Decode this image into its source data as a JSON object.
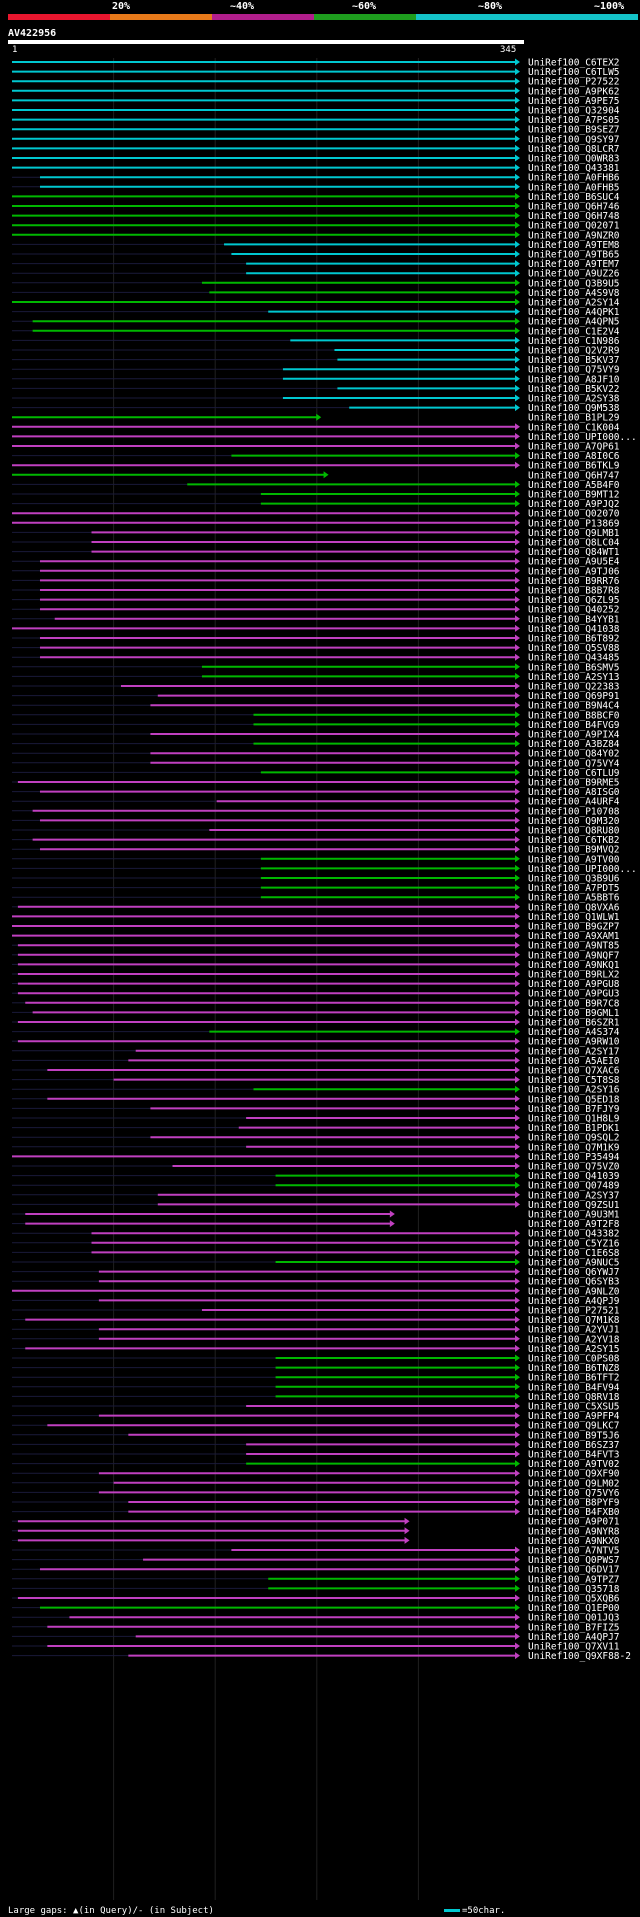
{
  "query": {
    "name": "AV422956",
    "start": "1",
    "end": "345"
  },
  "legend": {
    "ticks": [
      "20%",
      "~40%",
      "~60%",
      "~80%",
      "~100%"
    ],
    "colors": [
      "#e8162e",
      "#e87a1a",
      "#b21e8c",
      "#1e9e1e",
      "#14c3c8"
    ]
  },
  "footer": {
    "gaps_text": "Large gaps: ▲(in Query)/- (in Subject)",
    "scale_text": "=50char."
  },
  "colors": {
    "cyan": "#00c8d0",
    "green": "#00b800",
    "magenta": "#c040c0",
    "background": "#000000"
  },
  "hits": [
    {
      "id": "UniRef100_C6TEX2",
      "c": "cyan",
      "s": 1,
      "e": 345
    },
    {
      "id": "UniRef100_C6TLW5",
      "c": "cyan",
      "s": 1,
      "e": 345
    },
    {
      "id": "UniRef100_P27522",
      "c": "cyan",
      "s": 1,
      "e": 345
    },
    {
      "id": "UniRef100_A9PK62",
      "c": "cyan",
      "s": 1,
      "e": 345
    },
    {
      "id": "UniRef100_A9PE75",
      "c": "cyan",
      "s": 1,
      "e": 345
    },
    {
      "id": "UniRef100_Q32904",
      "c": "cyan",
      "s": 1,
      "e": 345
    },
    {
      "id": "UniRef100_A7PS05",
      "c": "cyan",
      "s": 1,
      "e": 345
    },
    {
      "id": "UniRef100_B9SEZ7",
      "c": "cyan",
      "s": 1,
      "e": 345
    },
    {
      "id": "UniRef100_Q9SY97",
      "c": "cyan",
      "s": 1,
      "e": 345
    },
    {
      "id": "UniRef100_Q8LCR7",
      "c": "cyan",
      "s": 1,
      "e": 345
    },
    {
      "id": "UniRef100_Q0WR83",
      "c": "cyan",
      "s": 1,
      "e": 345
    },
    {
      "id": "UniRef100_Q43381",
      "c": "cyan",
      "s": 1,
      "e": 345
    },
    {
      "id": "UniRef100_A0FHB6",
      "c": "cyan",
      "s": 20,
      "e": 345
    },
    {
      "id": "UniRef100_A0FHB5",
      "c": "cyan",
      "s": 20,
      "e": 345
    },
    {
      "id": "UniRef100_B6SUC4",
      "c": "green",
      "s": 1,
      "e": 345
    },
    {
      "id": "UniRef100_Q6H746",
      "c": "green",
      "s": 1,
      "e": 345
    },
    {
      "id": "UniRef100_Q6H748",
      "c": "green",
      "s": 1,
      "e": 345
    },
    {
      "id": "UniRef100_Q02071",
      "c": "green",
      "s": 1,
      "e": 345
    },
    {
      "id": "UniRef100_A9NZR0",
      "c": "green",
      "s": 1,
      "e": 345
    },
    {
      "id": "UniRef100_A9TEM8",
      "c": "cyan",
      "s": 145,
      "e": 345
    },
    {
      "id": "UniRef100_A9TB65",
      "c": "cyan",
      "s": 150,
      "e": 345
    },
    {
      "id": "UniRef100_A9TEM7",
      "c": "cyan",
      "s": 160,
      "e": 345
    },
    {
      "id": "UniRef100_A9UZ26",
      "c": "cyan",
      "s": 160,
      "e": 345
    },
    {
      "id": "UniRef100_Q3B9U5",
      "c": "green",
      "s": 130,
      "e": 345
    },
    {
      "id": "UniRef100_A4S9V8",
      "c": "green",
      "s": 135,
      "e": 345
    },
    {
      "id": "UniRef100_A2SY14",
      "c": "green",
      "s": 1,
      "e": 345
    },
    {
      "id": "UniRef100_A4QPK1",
      "c": "cyan",
      "s": 175,
      "e": 345
    },
    {
      "id": "UniRef100_A4QPN5",
      "c": "green",
      "s": 15,
      "e": 345
    },
    {
      "id": "UniRef100_C1E2V4",
      "c": "green",
      "s": 15,
      "e": 345
    },
    {
      "id": "UniRef100_C1N986",
      "c": "cyan",
      "s": 190,
      "e": 345
    },
    {
      "id": "UniRef100_Q2V2R9",
      "c": "cyan",
      "s": 220,
      "e": 345
    },
    {
      "id": "UniRef100_B5KV37",
      "c": "cyan",
      "s": 222,
      "e": 345
    },
    {
      "id": "UniRef100_Q75VY9",
      "c": "cyan",
      "s": 185,
      "e": 345
    },
    {
      "id": "UniRef100_A8JF10",
      "c": "cyan",
      "s": 185,
      "e": 345
    },
    {
      "id": "UniRef100_B5KV22",
      "c": "cyan",
      "s": 222,
      "e": 345
    },
    {
      "id": "UniRef100_A2SY38",
      "c": "cyan",
      "s": 185,
      "e": 345
    },
    {
      "id": "UniRef100_Q9M538",
      "c": "cyan",
      "s": 230,
      "e": 345
    },
    {
      "id": "UniRef100_B1PL29",
      "c": "green",
      "s": 1,
      "e": 210
    },
    {
      "id": "UniRef100_C1K004",
      "c": "magenta",
      "s": 1,
      "e": 345
    },
    {
      "id": "UniRef100_UPI000...",
      "c": "magenta",
      "s": 1,
      "e": 345
    },
    {
      "id": "UniRef100_A7QP61",
      "c": "magenta",
      "s": 1,
      "e": 345
    },
    {
      "id": "UniRef100_A8I0C6",
      "c": "green",
      "s": 150,
      "e": 345
    },
    {
      "id": "UniRef100_B6TKL9",
      "c": "magenta",
      "s": 1,
      "e": 345
    },
    {
      "id": "UniRef100_Q6H747",
      "c": "green",
      "s": 1,
      "e": 215
    },
    {
      "id": "UniRef100_A5B4F0",
      "c": "green",
      "s": 120,
      "e": 345
    },
    {
      "id": "UniRef100_B9MT12",
      "c": "green",
      "s": 170,
      "e": 345
    },
    {
      "id": "UniRef100_A9PJQ2",
      "c": "green",
      "s": 170,
      "e": 345
    },
    {
      "id": "UniRef100_Q02070",
      "c": "magenta",
      "s": 1,
      "e": 345
    },
    {
      "id": "UniRef100_P13869",
      "c": "magenta",
      "s": 1,
      "e": 345
    },
    {
      "id": "UniRef100_Q9LMB1",
      "c": "magenta",
      "s": 55,
      "e": 345
    },
    {
      "id": "UniRef100_Q8LC04",
      "c": "magenta",
      "s": 55,
      "e": 345
    },
    {
      "id": "UniRef100_Q84WT1",
      "c": "magenta",
      "s": 55,
      "e": 345
    },
    {
      "id": "UniRef100_A9U5E4",
      "c": "magenta",
      "s": 20,
      "e": 345
    },
    {
      "id": "UniRef100_A9TJ06",
      "c": "magenta",
      "s": 20,
      "e": 345
    },
    {
      "id": "UniRef100_B9RR76",
      "c": "magenta",
      "s": 20,
      "e": 345
    },
    {
      "id": "UniRef100_B8B7R8",
      "c": "magenta",
      "s": 20,
      "e": 345
    },
    {
      "id": "UniRef100_Q6ZL95",
      "c": "magenta",
      "s": 20,
      "e": 345
    },
    {
      "id": "UniRef100_Q40252",
      "c": "magenta",
      "s": 20,
      "e": 345
    },
    {
      "id": "UniRef100_B4YYB1",
      "c": "magenta",
      "s": 30,
      "e": 345
    },
    {
      "id": "UniRef100_Q41038",
      "c": "magenta",
      "s": 1,
      "e": 345
    },
    {
      "id": "UniRef100_B6T892",
      "c": "magenta",
      "s": 20,
      "e": 345
    },
    {
      "id": "UniRef100_Q5SV88",
      "c": "magenta",
      "s": 20,
      "e": 345
    },
    {
      "id": "UniRef100_Q43485",
      "c": "magenta",
      "s": 20,
      "e": 345
    },
    {
      "id": "UniRef100_B6SMV5",
      "c": "green",
      "s": 130,
      "e": 345
    },
    {
      "id": "UniRef100_A2SY13",
      "c": "green",
      "s": 130,
      "e": 345
    },
    {
      "id": "UniRef100_Q22383",
      "c": "magenta",
      "s": 75,
      "e": 345
    },
    {
      "id": "UniRef100_Q69P91",
      "c": "magenta",
      "s": 100,
      "e": 345
    },
    {
      "id": "UniRef100_B9N4C4",
      "c": "magenta",
      "s": 95,
      "e": 345
    },
    {
      "id": "UniRef100_B8BCF0",
      "c": "green",
      "s": 165,
      "e": 345
    },
    {
      "id": "UniRef100_B4FVG9",
      "c": "green",
      "s": 165,
      "e": 345
    },
    {
      "id": "UniRef100_A9PIX4",
      "c": "magenta",
      "s": 95,
      "e": 345
    },
    {
      "id": "UniRef100_A3BZ84",
      "c": "green",
      "s": 165,
      "e": 345
    },
    {
      "id": "UniRef100_Q84Y02",
      "c": "magenta",
      "s": 95,
      "e": 345
    },
    {
      "id": "UniRef100_Q75VY4",
      "c": "magenta",
      "s": 95,
      "e": 345
    },
    {
      "id": "UniRef100_C6TLU9",
      "c": "green",
      "s": 170,
      "e": 345
    },
    {
      "id": "UniRef100_B9RME5",
      "c": "magenta",
      "s": 5,
      "e": 345
    },
    {
      "id": "UniRef100_A8ISG0",
      "c": "magenta",
      "s": 20,
      "e": 345
    },
    {
      "id": "UniRef100_A4URF4",
      "c": "magenta",
      "s": 140,
      "e": 345
    },
    {
      "id": "UniRef100_P10708",
      "c": "magenta",
      "s": 15,
      "e": 345
    },
    {
      "id": "UniRef100_Q9M320",
      "c": "magenta",
      "s": 20,
      "e": 345
    },
    {
      "id": "UniRef100_Q8RU80",
      "c": "magenta",
      "s": 135,
      "e": 345
    },
    {
      "id": "UniRef100_C6TKB2",
      "c": "magenta",
      "s": 15,
      "e": 345
    },
    {
      "id": "UniRef100_B9MVQ2",
      "c": "magenta",
      "s": 20,
      "e": 345
    },
    {
      "id": "UniRef100_A9TV00",
      "c": "green",
      "s": 170,
      "e": 345
    },
    {
      "id": "UniRef100_UPI000...",
      "c": "green",
      "s": 170,
      "e": 345
    },
    {
      "id": "UniRef100_Q3B9U6",
      "c": "green",
      "s": 170,
      "e": 345
    },
    {
      "id": "UniRef100_A7PDT5",
      "c": "green",
      "s": 170,
      "e": 345
    },
    {
      "id": "UniRef100_A5BBT6",
      "c": "green",
      "s": 170,
      "e": 345
    },
    {
      "id": "UniRef100_Q8VXA6",
      "c": "magenta",
      "s": 5,
      "e": 345
    },
    {
      "id": "UniRef100_Q1WLW1",
      "c": "magenta",
      "s": 1,
      "e": 345
    },
    {
      "id": "UniRef100_B9GZP7",
      "c": "magenta",
      "s": 1,
      "e": 345
    },
    {
      "id": "UniRef100_A9XAM1",
      "c": "magenta",
      "s": 1,
      "e": 345
    },
    {
      "id": "UniRef100_A9NT85",
      "c": "magenta",
      "s": 5,
      "e": 345
    },
    {
      "id": "UniRef100_A9NQF7",
      "c": "magenta",
      "s": 5,
      "e": 345
    },
    {
      "id": "UniRef100_A9NKQ1",
      "c": "magenta",
      "s": 5,
      "e": 345
    },
    {
      "id": "UniRef100_B9RLX2",
      "c": "magenta",
      "s": 5,
      "e": 345
    },
    {
      "id": "UniRef100_A9PGU8",
      "c": "magenta",
      "s": 5,
      "e": 345
    },
    {
      "id": "UniRef100_A9PGU3",
      "c": "magenta",
      "s": 5,
      "e": 345
    },
    {
      "id": "UniRef100_B9R7C8",
      "c": "magenta",
      "s": 10,
      "e": 345
    },
    {
      "id": "UniRef100_B9GML1",
      "c": "magenta",
      "s": 15,
      "e": 345
    },
    {
      "id": "UniRef100_B6SZR1",
      "c": "magenta",
      "s": 5,
      "e": 345
    },
    {
      "id": "UniRef100_A4S374",
      "c": "green",
      "s": 135,
      "e": 345
    },
    {
      "id": "UniRef100_A9RW10",
      "c": "magenta",
      "s": 5,
      "e": 345
    },
    {
      "id": "UniRef100_A2SY17",
      "c": "magenta",
      "s": 85,
      "e": 345
    },
    {
      "id": "UniRef100_A5AEI0",
      "c": "magenta",
      "s": 80,
      "e": 345
    },
    {
      "id": "UniRef100_Q7XAC6",
      "c": "magenta",
      "s": 25,
      "e": 345
    },
    {
      "id": "UniRef100_C5T8S8",
      "c": "magenta",
      "s": 70,
      "e": 345
    },
    {
      "id": "UniRef100_A2SY16",
      "c": "green",
      "s": 165,
      "e": 345
    },
    {
      "id": "UniRef100_Q5ED18",
      "c": "magenta",
      "s": 25,
      "e": 345
    },
    {
      "id": "UniRef100_B7FJY9",
      "c": "magenta",
      "s": 95,
      "e": 345
    },
    {
      "id": "UniRef100_Q1H8L9",
      "c": "magenta",
      "s": 160,
      "e": 345
    },
    {
      "id": "UniRef100_B1PDK1",
      "c": "magenta",
      "s": 155,
      "e": 345
    },
    {
      "id": "UniRef100_Q9SQL2",
      "c": "magenta",
      "s": 95,
      "e": 345
    },
    {
      "id": "UniRef100_Q7M1K9",
      "c": "magenta",
      "s": 160,
      "e": 345
    },
    {
      "id": "UniRef100_P35494",
      "c": "magenta",
      "s": 1,
      "e": 345
    },
    {
      "id": "UniRef100_Q75VZ0",
      "c": "magenta",
      "s": 110,
      "e": 345
    },
    {
      "id": "UniRef100_Q41039",
      "c": "green",
      "s": 180,
      "e": 345
    },
    {
      "id": "UniRef100_Q07489",
      "c": "green",
      "s": 180,
      "e": 345
    },
    {
      "id": "UniRef100_A2SY37",
      "c": "magenta",
      "s": 100,
      "e": 345
    },
    {
      "id": "UniRef100_Q9ZSU1",
      "c": "magenta",
      "s": 100,
      "e": 345
    },
    {
      "id": "UniRef100_A9U3M1",
      "c": "magenta",
      "s": 10,
      "e": 260
    },
    {
      "id": "UniRef100_A9T2F8",
      "c": "magenta",
      "s": 10,
      "e": 260
    },
    {
      "id": "UniRef100_Q43382",
      "c": "magenta",
      "s": 55,
      "e": 345
    },
    {
      "id": "UniRef100_C5YZ16",
      "c": "magenta",
      "s": 55,
      "e": 345
    },
    {
      "id": "UniRef100_C1E6S8",
      "c": "magenta",
      "s": 55,
      "e": 345
    },
    {
      "id": "UniRef100_A9NUC5",
      "c": "green",
      "s": 180,
      "e": 345
    },
    {
      "id": "UniRef100_Q6YWJ7",
      "c": "magenta",
      "s": 60,
      "e": 345
    },
    {
      "id": "UniRef100_Q6SYB3",
      "c": "magenta",
      "s": 60,
      "e": 345
    },
    {
      "id": "UniRef100_A9NLZ0",
      "c": "magenta",
      "s": 1,
      "e": 345
    },
    {
      "id": "UniRef100_A4QPJ9",
      "c": "magenta",
      "s": 60,
      "e": 345
    },
    {
      "id": "UniRef100_P27521",
      "c": "magenta",
      "s": 130,
      "e": 345
    },
    {
      "id": "UniRef100_Q7M1K8",
      "c": "magenta",
      "s": 10,
      "e": 345
    },
    {
      "id": "UniRef100_A2YVJ1",
      "c": "magenta",
      "s": 60,
      "e": 345
    },
    {
      "id": "UniRef100_A2YV18",
      "c": "magenta",
      "s": 60,
      "e": 345
    },
    {
      "id": "UniRef100_A2SY15",
      "c": "magenta",
      "s": 10,
      "e": 345
    },
    {
      "id": "UniRef100_C0PS08",
      "c": "green",
      "s": 180,
      "e": 345
    },
    {
      "id": "UniRef100_B6TNZ8",
      "c": "green",
      "s": 180,
      "e": 345
    },
    {
      "id": "UniRef100_B6TFT2",
      "c": "green",
      "s": 180,
      "e": 345
    },
    {
      "id": "UniRef100_B4FV94",
      "c": "green",
      "s": 180,
      "e": 345
    },
    {
      "id": "UniRef100_Q8RV18",
      "c": "green",
      "s": 180,
      "e": 345
    },
    {
      "id": "UniRef100_C5XSU5",
      "c": "magenta",
      "s": 160,
      "e": 345
    },
    {
      "id": "UniRef100_A9PFP4",
      "c": "magenta",
      "s": 60,
      "e": 345
    },
    {
      "id": "UniRef100_Q9LKC7",
      "c": "magenta",
      "s": 25,
      "e": 345
    },
    {
      "id": "UniRef100_B9T5J6",
      "c": "magenta",
      "s": 80,
      "e": 345
    },
    {
      "id": "UniRef100_B6SZ37",
      "c": "magenta",
      "s": 160,
      "e": 345
    },
    {
      "id": "UniRef100_B4FVT3",
      "c": "magenta",
      "s": 160,
      "e": 345
    },
    {
      "id": "UniRef100_A9TV02",
      "c": "green",
      "s": 160,
      "e": 345
    },
    {
      "id": "UniRef100_Q9XF90",
      "c": "magenta",
      "s": 60,
      "e": 345
    },
    {
      "id": "UniRef100_Q9LM02",
      "c": "magenta",
      "s": 70,
      "e": 345
    },
    {
      "id": "UniRef100_Q75VY6",
      "c": "magenta",
      "s": 60,
      "e": 345
    },
    {
      "id": "UniRef100_B8PYF9",
      "c": "magenta",
      "s": 80,
      "e": 345
    },
    {
      "id": "UniRef100_B4FXB0",
      "c": "magenta",
      "s": 80,
      "e": 345
    },
    {
      "id": "UniRef100_A9P071",
      "c": "magenta",
      "s": 5,
      "e": 270
    },
    {
      "id": "UniRef100_A9NYR8",
      "c": "magenta",
      "s": 5,
      "e": 270
    },
    {
      "id": "UniRef100_A9NKX0",
      "c": "magenta",
      "s": 5,
      "e": 270
    },
    {
      "id": "UniRef100_A7NTV5",
      "c": "magenta",
      "s": 150,
      "e": 345
    },
    {
      "id": "UniRef100_Q0PWS7",
      "c": "magenta",
      "s": 90,
      "e": 345
    },
    {
      "id": "UniRef100_Q6DV17",
      "c": "magenta",
      "s": 20,
      "e": 345
    },
    {
      "id": "UniRef100_A9TPZ7",
      "c": "green",
      "s": 175,
      "e": 345
    },
    {
      "id": "UniRef100_Q35718",
      "c": "green",
      "s": 175,
      "e": 345
    },
    {
      "id": "UniRef100_Q5XQB6",
      "c": "magenta",
      "s": 5,
      "e": 345
    },
    {
      "id": "UniRef100_Q1EP00",
      "c": "green",
      "s": 20,
      "e": 345
    },
    {
      "id": "UniRef100_Q01JQ3",
      "c": "magenta",
      "s": 40,
      "e": 345
    },
    {
      "id": "UniRef100_B7FIZ5",
      "c": "magenta",
      "s": 25,
      "e": 345
    },
    {
      "id": "UniRef100_A4QPJ7",
      "c": "magenta",
      "s": 85,
      "e": 345
    },
    {
      "id": "UniRef100_Q7XV11",
      "c": "magenta",
      "s": 25,
      "e": 345
    },
    {
      "id": "UniRef100_Q9XF88-2",
      "c": "magenta",
      "s": 80,
      "e": 345
    }
  ]
}
